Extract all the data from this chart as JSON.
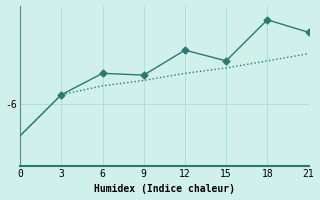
{
  "xlabel": "Humidex (Indice chaleur)",
  "background_color": "#cff0eb",
  "line_color": "#2a7a70",
  "x_line1": [
    0,
    3,
    6,
    9,
    12,
    15,
    18,
    21
  ],
  "y_line1": [
    -7.8,
    -5.5,
    -4.3,
    -4.4,
    -3.0,
    -3.6,
    -1.3,
    -2.0
  ],
  "x_line2": [
    0,
    3,
    6,
    9,
    12,
    15,
    18,
    21
  ],
  "y_line2": [
    -7.8,
    -5.5,
    -5.0,
    -4.7,
    -4.3,
    -4.0,
    -3.6,
    -3.2
  ],
  "xticks": [
    0,
    3,
    6,
    9,
    12,
    15,
    18,
    21
  ],
  "ytick_labels": [
    "-6"
  ],
  "ytick_vals": [
    -6.0
  ],
  "ylim": [
    -9.5,
    -0.5
  ],
  "xlim": [
    0,
    21
  ],
  "grid_color": "#a8ddd6",
  "marker": "D",
  "markersize": 3.5,
  "linewidth": 1.0,
  "font": "monospace",
  "fontsize_tick": 7,
  "fontsize_xlabel": 7
}
